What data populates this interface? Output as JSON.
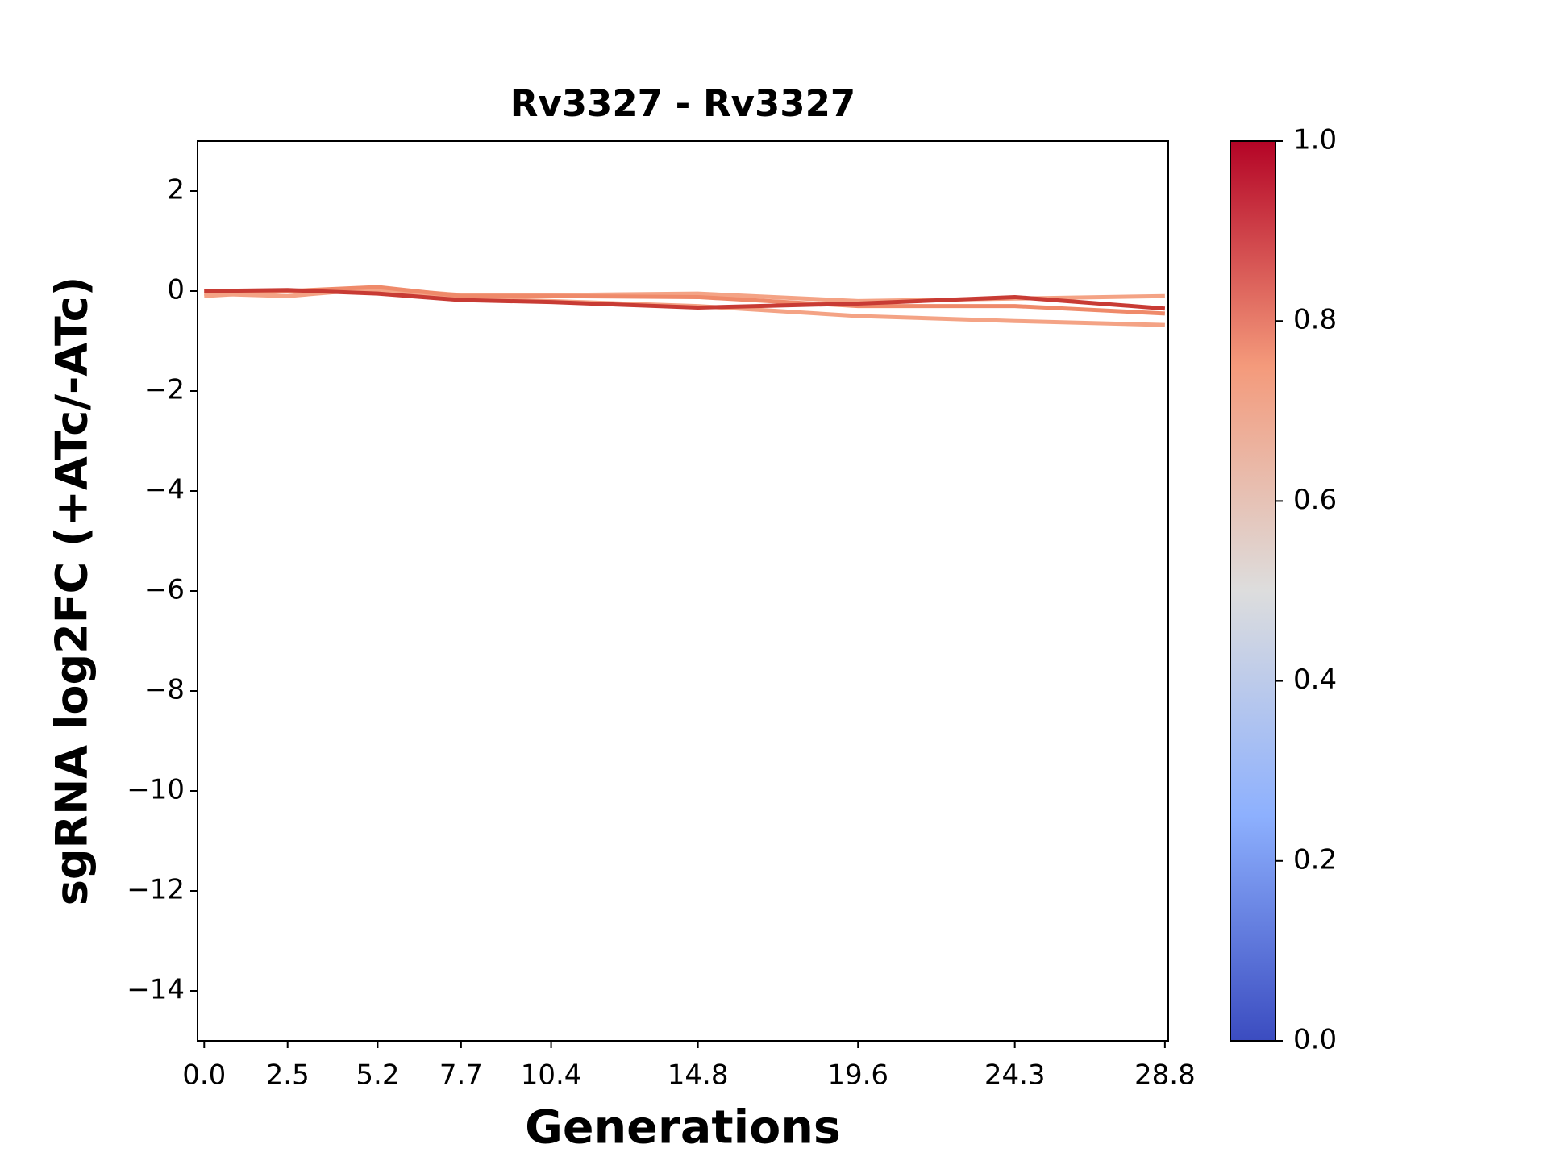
{
  "chart_data": {
    "type": "line",
    "title": "Rv3327 - Rv3327",
    "x_label": "Generations",
    "y_label": "sgRNA log2FC (+ATc/-ATc)",
    "x": [
      0,
      2.5,
      5.2,
      7.7,
      10.4,
      14.8,
      19.6,
      24.3,
      28.8
    ],
    "xlim": [
      -0.2,
      28.9
    ],
    "xticks": [
      {
        "value": 0,
        "label": "0.0"
      },
      2.5,
      5.2,
      7.7,
      10.4,
      14.8,
      19.6,
      24.3,
      28.8
    ],
    "ylim": [
      -15,
      3
    ],
    "yticks": [
      2,
      0,
      {
        "value": -2,
        "label": "−2"
      },
      {
        "value": -4,
        "label": "−4"
      },
      {
        "value": -6,
        "label": "−6"
      },
      {
        "value": -8,
        "label": "−8"
      },
      {
        "value": -10,
        "label": "−10"
      },
      {
        "value": -12,
        "label": "−12"
      },
      {
        "value": -14,
        "label": "−14"
      }
    ],
    "series": [
      {
        "color": "#f4a385",
        "values": [
          -0.1,
          0.0,
          0.0,
          -0.15,
          -0.2,
          -0.3,
          -0.5,
          -0.6,
          -0.68
        ]
      },
      {
        "color": "#f4a385",
        "values": [
          -0.05,
          -0.1,
          0.05,
          -0.08,
          -0.08,
          -0.05,
          -0.2,
          -0.15,
          -0.1
        ]
      },
      {
        "color": "#ef8a6a",
        "values": [
          0.0,
          0.0,
          0.08,
          -0.1,
          -0.1,
          -0.12,
          -0.3,
          -0.3,
          -0.45
        ]
      },
      {
        "color": "#c83b34",
        "values": [
          0.0,
          0.02,
          -0.05,
          -0.18,
          -0.22,
          -0.33,
          -0.25,
          -0.12,
          -0.35
        ]
      }
    ],
    "colorbar_lim": [
      0,
      1
    ],
    "colorbar_ticks": [
      {
        "value": 0,
        "label": "0.0"
      },
      0.2,
      0.4,
      0.6,
      0.8,
      {
        "value": 1,
        "label": "1.0"
      }
    ]
  }
}
